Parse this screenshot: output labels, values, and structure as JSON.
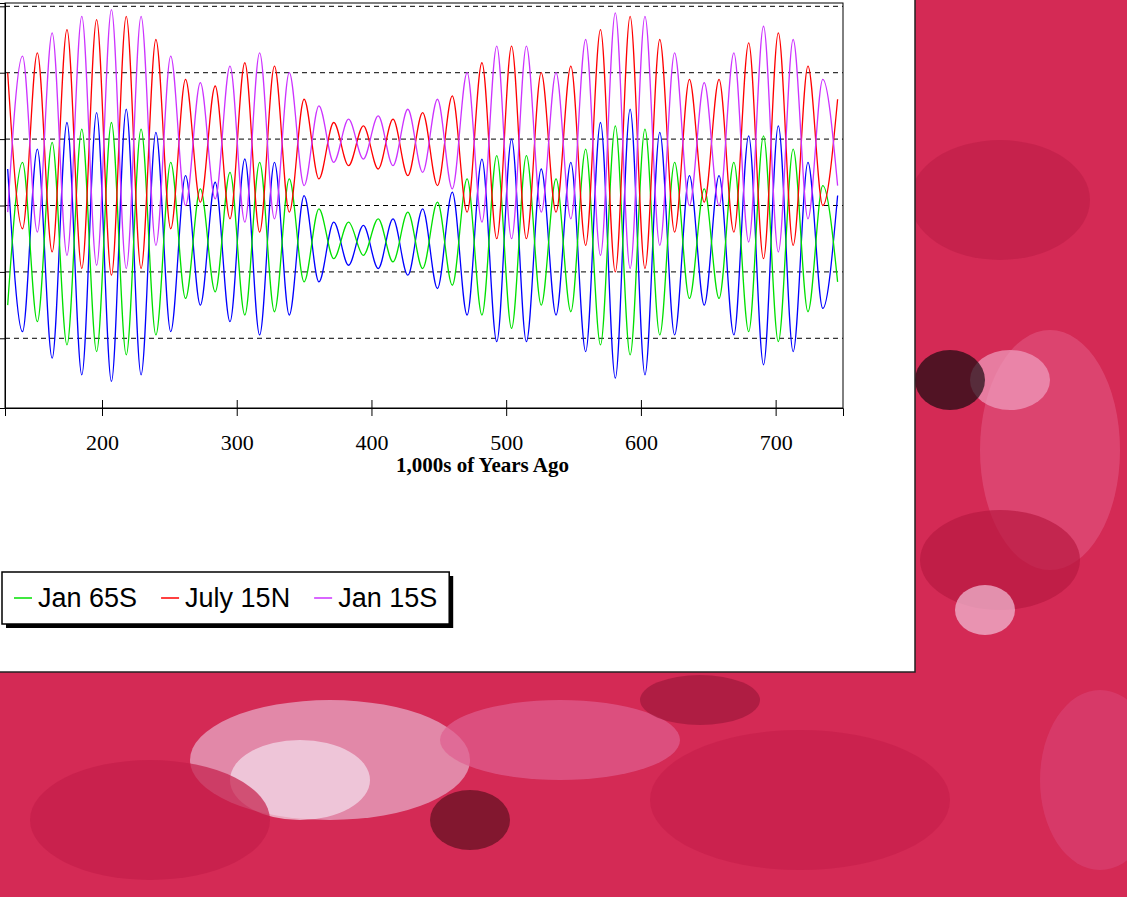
{
  "chart_data": {
    "type": "line",
    "x_label": "1,000s of Years Ago",
    "x": [
      130,
      141,
      152,
      163,
      174,
      185,
      196,
      207,
      218,
      229,
      240,
      251,
      262,
      273,
      284,
      295,
      306,
      317,
      328,
      339,
      350,
      361,
      372,
      383,
      394,
      405,
      416,
      427,
      438,
      449,
      460,
      471,
      482,
      493,
      504,
      515,
      526,
      537,
      548,
      559,
      570,
      581,
      592,
      603,
      614,
      625,
      636,
      647,
      658,
      669,
      680,
      691,
      702,
      713,
      724,
      735,
      746
    ],
    "series": [
      {
        "color": "#0000ff",
        "values": [
          11,
          -38,
          17,
          -46,
          25,
          -51,
          28,
          -53,
          29,
          -51,
          22,
          -38,
          9,
          -30,
          7,
          -35,
          14,
          -39,
          13,
          -33,
          3,
          -23,
          -5,
          -18,
          -6,
          -19,
          -4,
          -21,
          -1,
          -25,
          4,
          -33,
          14,
          -41,
          20,
          -41,
          11,
          -33,
          13,
          -44,
          25,
          -52,
          29,
          -51,
          22,
          -39,
          9,
          -30,
          9,
          -39,
          21,
          -48,
          24,
          -44,
          13,
          -31,
          3
        ]
      },
      {
        "name": "Jan 65S",
        "color": "#00e000",
        "values": [
          -30,
          13,
          -35,
          19,
          -42,
          23,
          -44,
          25,
          -45,
          23,
          -39,
          13,
          -28,
          5,
          -26,
          10,
          -33,
          13,
          -32,
          8,
          -23,
          -1,
          -16,
          -5,
          -15,
          -4,
          -17,
          -2,
          -19,
          1,
          -24,
          8,
          -33,
          15,
          -37,
          15,
          -30,
          8,
          -32,
          17,
          -42,
          24,
          -45,
          23,
          -39,
          13,
          -28,
          5,
          -28,
          13,
          -38,
          21,
          -41,
          17,
          -32,
          6,
          -23
        ]
      },
      {
        "name": "July 15N",
        "color": "#ff0000",
        "values": [
          40,
          -7,
          46,
          -14,
          53,
          -19,
          56,
          -21,
          57,
          -19,
          50,
          -7,
          38,
          1,
          36,
          -4,
          43,
          -8,
          42,
          -2,
          32,
          8,
          25,
          12,
          24,
          11,
          26,
          9,
          28,
          6,
          33,
          -2,
          43,
          -10,
          48,
          -10,
          40,
          -2,
          42,
          -12,
          53,
          -20,
          57,
          -19,
          50,
          -8,
          38,
          1,
          38,
          -8,
          49,
          -16,
          52,
          -12,
          42,
          0,
          32
        ]
      },
      {
        "name": "Jan 15S",
        "color": "#cc33ff",
        "values": [
          -2,
          45,
          -8,
          52,
          -15,
          57,
          -18,
          59,
          -19,
          57,
          -12,
          45,
          0,
          37,
          2,
          42,
          -5,
          46,
          -4,
          40,
          6,
          30,
          13,
          26,
          14,
          27,
          12,
          29,
          10,
          32,
          5,
          40,
          -5,
          48,
          -10,
          48,
          -2,
          40,
          -4,
          50,
          -15,
          58,
          -19,
          57,
          -12,
          46,
          0,
          37,
          0,
          46,
          -11,
          54,
          -14,
          50,
          -4,
          38,
          6
        ]
      }
    ],
    "xlim": [
      128,
      750
    ],
    "xticks": [
      200,
      300,
      400,
      500,
      600,
      700
    ],
    "ylim": [
      -61,
      61
    ],
    "yticks": [
      -40,
      -20,
      0,
      20,
      40,
      60
    ],
    "grid": true,
    "tick_labels": "x",
    "legend": "bottom"
  }
}
